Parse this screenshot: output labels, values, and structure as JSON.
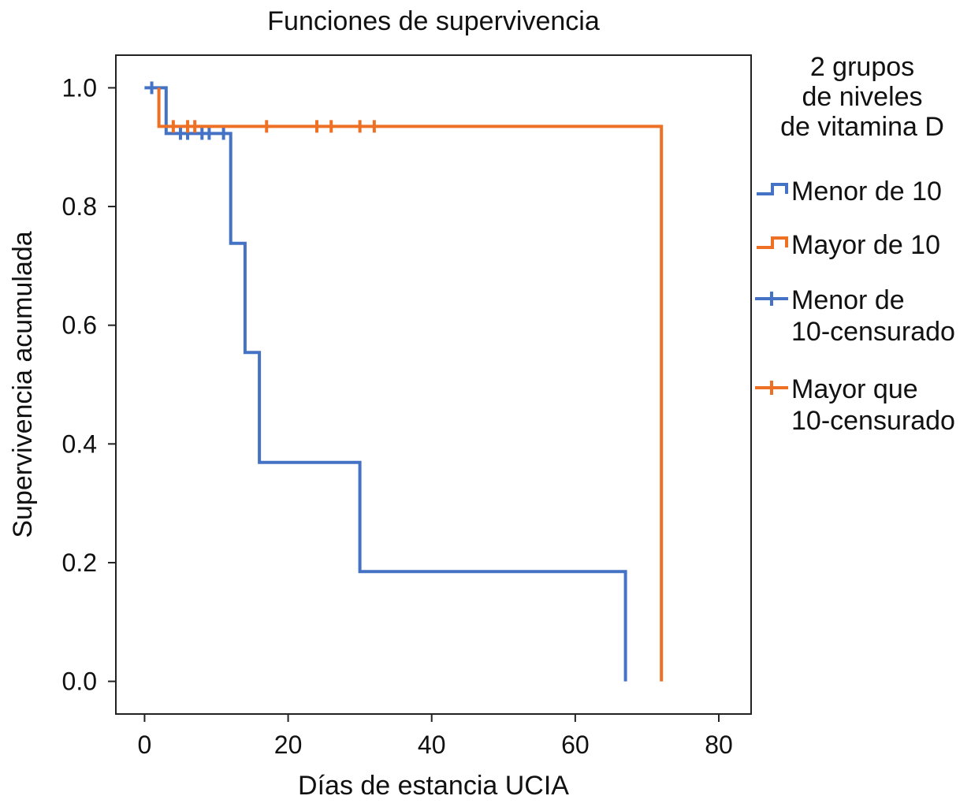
{
  "chart_data": {
    "type": "line",
    "title": "Funciones de supervivencia",
    "xlabel": "Días de estancia UCIA",
    "ylabel": "Supervivencia acumulada",
    "xlim": [
      -4,
      84.5
    ],
    "ylim": [
      -0.055,
      1.055
    ],
    "x_ticks": [
      0,
      20,
      40,
      60,
      80
    ],
    "x_tick_labels": [
      "0",
      "20",
      "40",
      "60",
      "80"
    ],
    "y_ticks": [
      0.0,
      0.2,
      0.4,
      0.6,
      0.8,
      1.0
    ],
    "y_tick_labels": [
      "0.0",
      "0.2",
      "0.4",
      "0.6",
      "0.8",
      "1.0"
    ],
    "legend": {
      "title": [
        "2 grupos",
        "de niveles",
        "de vitamina D"
      ],
      "position": "right",
      "entries": [
        {
          "label": [
            "Menor de 10"
          ],
          "kind": "step",
          "color": "#4472c4"
        },
        {
          "label": [
            "Mayor de 10"
          ],
          "kind": "step",
          "color": "#ed7024"
        },
        {
          "label": [
            "Menor de",
            "10-censurado"
          ],
          "kind": "censor",
          "color": "#4472c4"
        },
        {
          "label": [
            "Mayor que",
            "10-censurado"
          ],
          "kind": "censor",
          "color": "#ed7024"
        }
      ]
    },
    "series": [
      {
        "name": "Menor de 10",
        "color": "#4472c4",
        "steps": [
          [
            0,
            1.0
          ],
          [
            3,
            1.0
          ],
          [
            3,
            0.923
          ],
          [
            12,
            0.923
          ],
          [
            12,
            0.738
          ],
          [
            14,
            0.738
          ],
          [
            14,
            0.554
          ],
          [
            16,
            0.554
          ],
          [
            16,
            0.369
          ],
          [
            30,
            0.369
          ],
          [
            30,
            0.185
          ],
          [
            67,
            0.185
          ],
          [
            67,
            0.0
          ]
        ],
        "censored": [
          [
            1,
            1.0
          ],
          [
            5,
            0.923
          ],
          [
            6,
            0.923
          ],
          [
            8,
            0.923
          ],
          [
            9,
            0.923
          ],
          [
            11,
            0.923
          ]
        ]
      },
      {
        "name": "Mayor de 10",
        "color": "#ed7024",
        "steps": [
          [
            2,
            1.0
          ],
          [
            2,
            0.935
          ],
          [
            72,
            0.935
          ],
          [
            72,
            0.0
          ]
        ],
        "censored": [
          [
            4,
            0.935
          ],
          [
            6,
            0.935
          ],
          [
            7,
            0.935
          ],
          [
            17,
            0.935
          ],
          [
            24,
            0.935
          ],
          [
            26,
            0.935
          ],
          [
            30,
            0.935
          ],
          [
            32,
            0.935
          ]
        ]
      }
    ]
  }
}
